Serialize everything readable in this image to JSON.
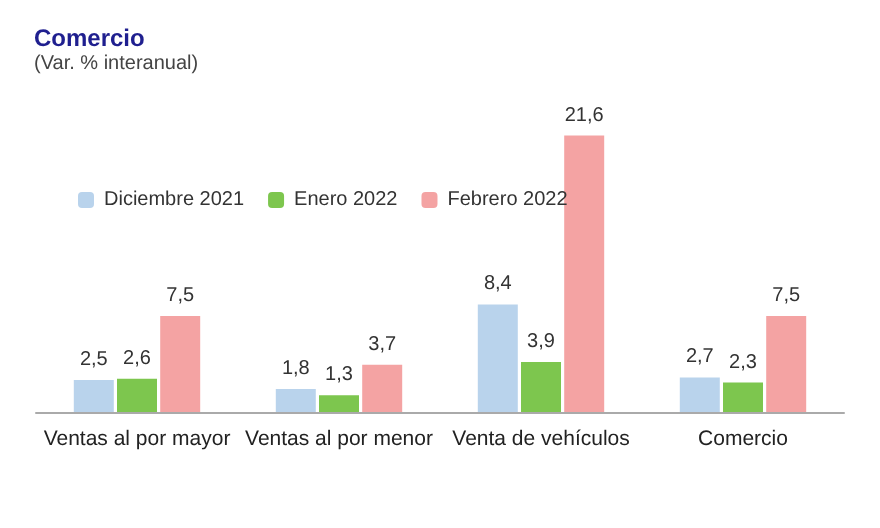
{
  "chart_data": {
    "type": "bar",
    "title": "Comercio",
    "subtitle": "(Var. % interanual)",
    "categories": [
      "Ventas al por mayor",
      "Ventas al por menor",
      "Venta de vehículos",
      "Comercio"
    ],
    "series": [
      {
        "name": "Diciembre 2021",
        "color": "#b9d3ec",
        "values": [
          2.5,
          1.8,
          8.4,
          2.7
        ],
        "value_labels": [
          "2,5",
          "1,8",
          "8,4",
          "2,7"
        ]
      },
      {
        "name": "Enero 2022",
        "color": "#7dc64e",
        "values": [
          2.6,
          1.3,
          3.9,
          2.3
        ],
        "value_labels": [
          "2,6",
          "1,3",
          "3,9",
          "2,3"
        ]
      },
      {
        "name": "Febrero 2022",
        "color": "#f4a3a3",
        "values": [
          7.5,
          3.7,
          21.6,
          7.5
        ],
        "value_labels": [
          "7,5",
          "3,7",
          "21,6",
          "7,5"
        ]
      }
    ],
    "legend": "top left",
    "grid": false
  }
}
